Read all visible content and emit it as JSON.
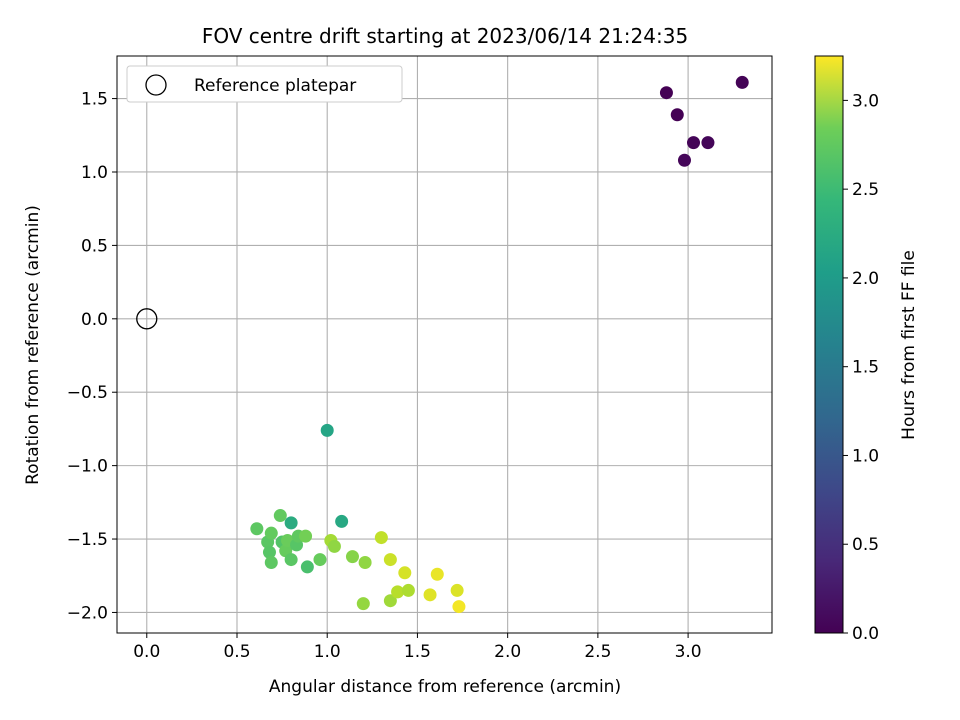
{
  "chart_data": {
    "type": "scatter",
    "title": "FOV centre drift starting at 2023/06/14 21:24:35",
    "xlabel": "Angular distance from reference (arcmin)",
    "ylabel": "Rotation from reference (arcmin)",
    "xlim": [
      -0.165,
      3.465
    ],
    "ylim": [
      -2.14,
      1.79
    ],
    "xticks": [
      0.0,
      0.5,
      1.0,
      1.5,
      2.0,
      2.5,
      3.0
    ],
    "xtick_labels": [
      "0.0",
      "0.5",
      "1.0",
      "1.5",
      "2.0",
      "2.5",
      "3.0"
    ],
    "yticks": [
      -2.0,
      -1.5,
      -1.0,
      -0.5,
      0.0,
      0.5,
      1.0,
      1.5
    ],
    "ytick_labels": [
      "−2.0",
      "−1.5",
      "−1.0",
      "−0.5",
      "0.0",
      "0.5",
      "1.0",
      "1.5"
    ],
    "grid": true,
    "colormap": "viridis",
    "colorbar": {
      "label": "Hours from first FF file",
      "range": [
        0.0,
        3.25
      ],
      "ticks": [
        0.0,
        0.5,
        1.0,
        1.5,
        2.0,
        2.5,
        3.0
      ],
      "tick_labels": [
        "0.0",
        "0.5",
        "1.0",
        "1.5",
        "2.0",
        "2.5",
        "3.0"
      ]
    },
    "legend": {
      "placement": "top-left",
      "entries": [
        {
          "label": "Reference platepar",
          "marker": "open-circle",
          "x": 0.0,
          "y": 0.0
        }
      ]
    },
    "points": [
      {
        "x": 2.88,
        "y": 1.54,
        "hours": 0.0
      },
      {
        "x": 2.94,
        "y": 1.39,
        "hours": 0.0
      },
      {
        "x": 3.3,
        "y": 1.61,
        "hours": 0.02
      },
      {
        "x": 3.03,
        "y": 1.2,
        "hours": 0.03
      },
      {
        "x": 3.11,
        "y": 1.2,
        "hours": 0.04
      },
      {
        "x": 2.98,
        "y": 1.08,
        "hours": 0.05
      },
      {
        "x": 1.0,
        "y": -0.76,
        "hours": 1.9
      },
      {
        "x": 1.08,
        "y": -1.38,
        "hours": 1.95
      },
      {
        "x": 0.8,
        "y": -1.39,
        "hours": 2.0
      },
      {
        "x": 0.61,
        "y": -1.43,
        "hours": 2.42
      },
      {
        "x": 0.74,
        "y": -1.34,
        "hours": 2.45
      },
      {
        "x": 0.67,
        "y": -1.52,
        "hours": 2.4
      },
      {
        "x": 0.69,
        "y": -1.46,
        "hours": 2.46
      },
      {
        "x": 0.68,
        "y": -1.59,
        "hours": 2.38
      },
      {
        "x": 0.69,
        "y": -1.66,
        "hours": 2.42
      },
      {
        "x": 0.75,
        "y": -1.52,
        "hours": 2.35
      },
      {
        "x": 0.77,
        "y": -1.58,
        "hours": 2.48
      },
      {
        "x": 0.78,
        "y": -1.51,
        "hours": 2.5
      },
      {
        "x": 0.8,
        "y": -1.64,
        "hours": 2.4
      },
      {
        "x": 0.83,
        "y": -1.54,
        "hours": 2.38
      },
      {
        "x": 0.84,
        "y": -1.48,
        "hours": 2.44
      },
      {
        "x": 0.88,
        "y": -1.48,
        "hours": 2.55
      },
      {
        "x": 0.89,
        "y": -1.69,
        "hours": 2.3
      },
      {
        "x": 0.96,
        "y": -1.64,
        "hours": 2.48
      },
      {
        "x": 1.02,
        "y": -1.51,
        "hours": 2.8
      },
      {
        "x": 1.04,
        "y": -1.55,
        "hours": 2.7
      },
      {
        "x": 1.14,
        "y": -1.62,
        "hours": 2.65
      },
      {
        "x": 1.21,
        "y": -1.66,
        "hours": 2.7
      },
      {
        "x": 1.2,
        "y": -1.94,
        "hours": 2.72
      },
      {
        "x": 1.3,
        "y": -1.49,
        "hours": 2.95
      },
      {
        "x": 1.35,
        "y": -1.64,
        "hours": 3.0
      },
      {
        "x": 1.35,
        "y": -1.92,
        "hours": 2.78
      },
      {
        "x": 1.39,
        "y": -1.86,
        "hours": 2.9
      },
      {
        "x": 1.43,
        "y": -1.73,
        "hours": 3.05
      },
      {
        "x": 1.45,
        "y": -1.85,
        "hours": 2.85
      },
      {
        "x": 1.57,
        "y": -1.88,
        "hours": 3.1
      },
      {
        "x": 1.61,
        "y": -1.74,
        "hours": 3.15
      },
      {
        "x": 1.72,
        "y": -1.85,
        "hours": 3.08
      },
      {
        "x": 1.73,
        "y": -1.96,
        "hours": 3.2
      }
    ]
  }
}
